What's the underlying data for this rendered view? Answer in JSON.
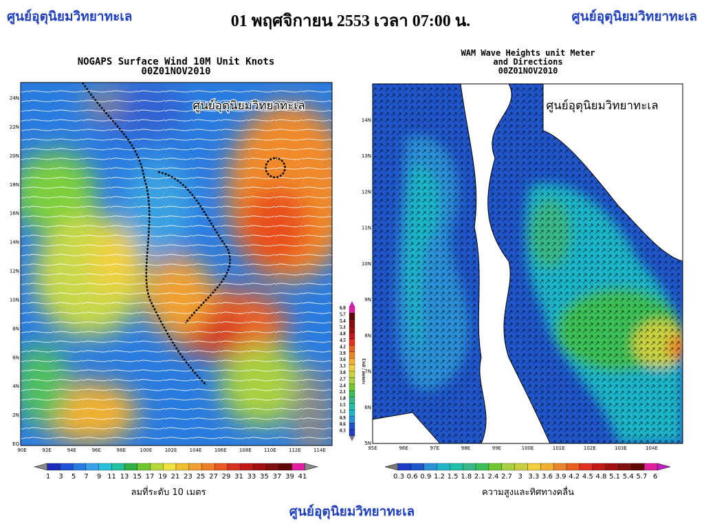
{
  "header": {
    "left": "ศูนย์อุตุนิยมวิทยาทะเล",
    "center": "01 พฤศจิกายน 2553 เวลา 07:00 น.",
    "right": "ศูนย์อุตุนิยมวิทยาทะเล"
  },
  "wind_map": {
    "title_line1": "NOGAPS Surface Wind 10M Unit Knots",
    "title_line2": "00Z01NOV2010",
    "watermark": "ศูนย์อุตุนิยมวิทยาทะเล",
    "lat_labels": [
      "24N",
      "22N",
      "20N",
      "18N",
      "16N",
      "14N",
      "12N",
      "10N",
      "8N",
      "6N",
      "4N",
      "2N",
      "EQ"
    ],
    "lon_labels": [
      "90E",
      "92E",
      "94E",
      "96E",
      "98E",
      "100E",
      "102E",
      "104E",
      "106E",
      "108E",
      "110E",
      "112E",
      "114E"
    ],
    "legend_labels": [
      "1",
      "3",
      "5",
      "7",
      "9",
      "11",
      "13",
      "15",
      "17",
      "19",
      "21",
      "23",
      "25",
      "27",
      "29",
      "31",
      "33",
      "35",
      "37",
      "39",
      "41"
    ],
    "caption": "ลมที่ระดับ 10 เมตร"
  },
  "wave_scale": {
    "labels": [
      "6.0",
      "5.7",
      "5.4",
      "5.1",
      "4.8",
      "4.5",
      "4.2",
      "3.9",
      "3.6",
      "3.3",
      "3.0",
      "2.7",
      "2.4",
      "2.1",
      "1.8",
      "1.5",
      "1.2",
      "0.9",
      "0.6",
      "0.3"
    ],
    "unit": "Unit : meters"
  },
  "wave_map": {
    "title_line1": "WAM Wave Heights unit Meter",
    "title_line2": "and Directions",
    "title_line3": "00Z01NOV2010",
    "watermark": "ศูนย์อุตุนิยมวิทยาทะเล",
    "lat_labels": [
      "14N",
      "13N",
      "12N",
      "11N",
      "10N",
      "9N",
      "8N",
      "7N",
      "6N",
      "5N"
    ],
    "lon_labels": [
      "95E",
      "96E",
      "97E",
      "98E",
      "99E",
      "100E",
      "101E",
      "102E",
      "103E",
      "104E"
    ],
    "legend_labels": [
      "0.3",
      "0.6",
      "0.9",
      "1.2",
      "1.5",
      "1.8",
      "2.1",
      "2.4",
      "2.7",
      "3",
      "3.3",
      "3.6",
      "3.9",
      "4.2",
      "4.5",
      "4.8",
      "5.1",
      "5.4",
      "5.7",
      "6"
    ],
    "caption": "ความสูงและทิศทางคลื่น"
  },
  "footer": "ศูนย์อุตุนิยมวิทยาทะเล"
}
